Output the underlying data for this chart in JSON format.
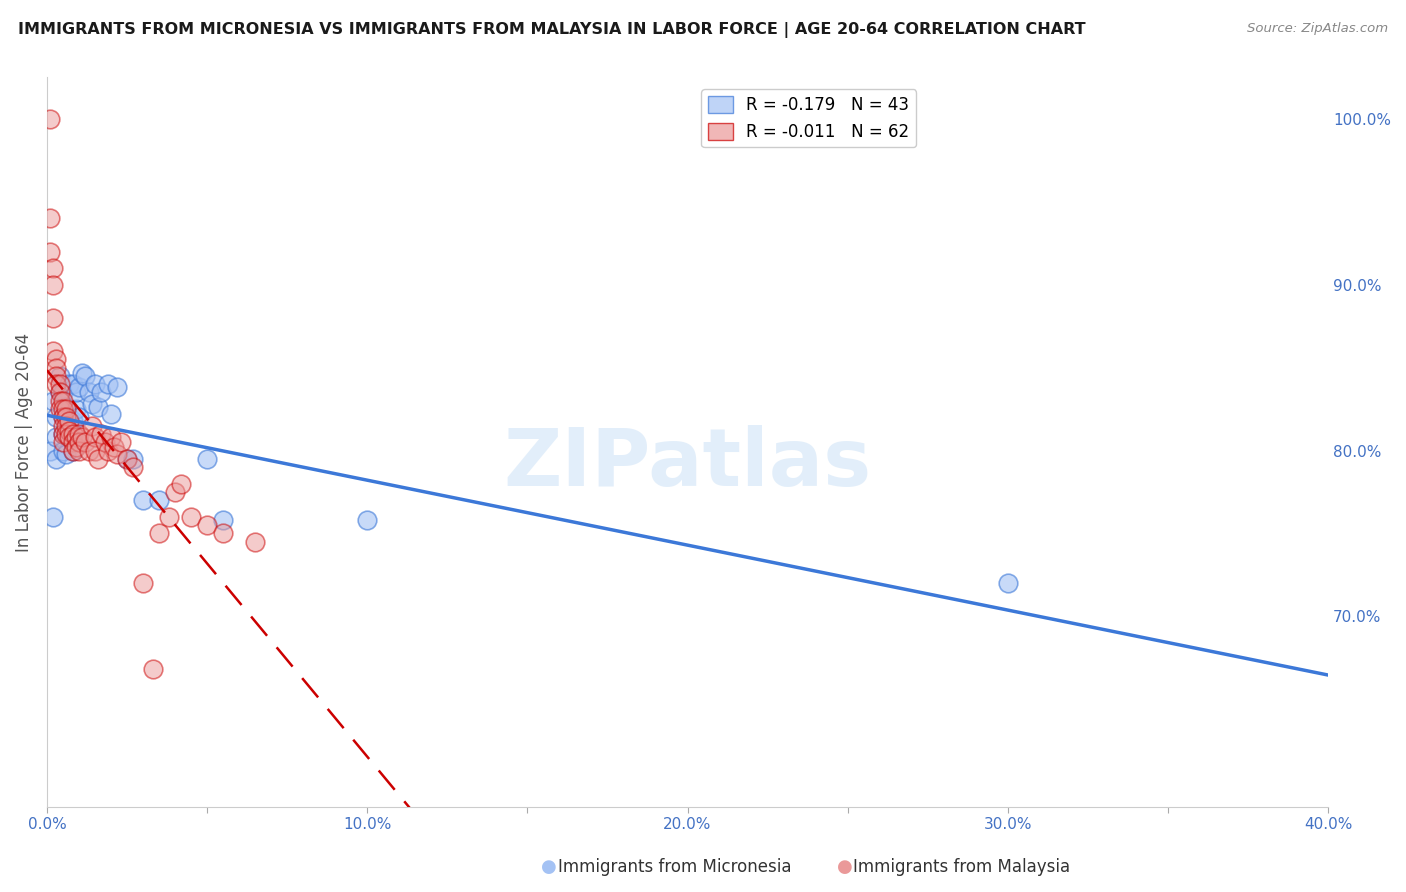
{
  "title": "IMMIGRANTS FROM MICRONESIA VS IMMIGRANTS FROM MALAYSIA IN LABOR FORCE | AGE 20-64 CORRELATION CHART",
  "source": "Source: ZipAtlas.com",
  "ylabel": "In Labor Force | Age 20-64",
  "xlim": [
    0.0,
    0.4
  ],
  "ylim": [
    0.585,
    1.025
  ],
  "right_yticks": [
    1.0,
    0.9,
    0.8,
    0.7
  ],
  "right_yticklabels": [
    "100.0%",
    "90.0%",
    "80.0%",
    "70.0%"
  ],
  "xticks": [
    0.0,
    0.05,
    0.1,
    0.15,
    0.2,
    0.25,
    0.3,
    0.35,
    0.4
  ],
  "xticklabels": [
    "0.0%",
    "",
    "10.0%",
    "",
    "20.0%",
    "",
    "30.0%",
    "",
    "40.0%"
  ],
  "micronesia_color": "#a4c2f4",
  "malaysia_color": "#ea9999",
  "micronesia_line_color": "#3c78d8",
  "malaysia_line_color": "#cc0000",
  "axis_color": "#4472c4",
  "grid_color": "#cccccc",
  "watermark": "ZIPatlas",
  "mic_R": -0.179,
  "mic_N": 43,
  "mal_R": -0.011,
  "mal_N": 62,
  "micronesia_x": [
    0.001,
    0.002,
    0.002,
    0.003,
    0.003,
    0.003,
    0.004,
    0.004,
    0.005,
    0.005,
    0.005,
    0.005,
    0.006,
    0.006,
    0.006,
    0.007,
    0.007,
    0.007,
    0.008,
    0.008,
    0.008,
    0.009,
    0.009,
    0.01,
    0.01,
    0.011,
    0.012,
    0.013,
    0.014,
    0.015,
    0.016,
    0.017,
    0.019,
    0.02,
    0.022,
    0.025,
    0.027,
    0.03,
    0.035,
    0.05,
    0.055,
    0.1,
    0.3
  ],
  "micronesia_y": [
    0.8,
    0.76,
    0.83,
    0.795,
    0.808,
    0.82,
    0.835,
    0.845,
    0.8,
    0.81,
    0.82,
    0.835,
    0.798,
    0.81,
    0.826,
    0.808,
    0.82,
    0.84,
    0.8,
    0.818,
    0.84,
    0.825,
    0.835,
    0.82,
    0.838,
    0.847,
    0.845,
    0.835,
    0.828,
    0.84,
    0.826,
    0.835,
    0.84,
    0.822,
    0.838,
    0.795,
    0.795,
    0.77,
    0.77,
    0.795,
    0.758,
    0.758,
    0.72
  ],
  "malaysia_x": [
    0.001,
    0.001,
    0.001,
    0.002,
    0.002,
    0.002,
    0.002,
    0.003,
    0.003,
    0.003,
    0.003,
    0.004,
    0.004,
    0.004,
    0.004,
    0.005,
    0.005,
    0.005,
    0.005,
    0.005,
    0.005,
    0.006,
    0.006,
    0.006,
    0.006,
    0.007,
    0.007,
    0.007,
    0.008,
    0.008,
    0.008,
    0.009,
    0.009,
    0.01,
    0.01,
    0.01,
    0.011,
    0.012,
    0.013,
    0.014,
    0.015,
    0.015,
    0.016,
    0.017,
    0.018,
    0.019,
    0.02,
    0.021,
    0.022,
    0.023,
    0.025,
    0.027,
    0.03,
    0.033,
    0.035,
    0.038,
    0.04,
    0.042,
    0.045,
    0.05,
    0.055,
    0.065
  ],
  "malaysia_y": [
    1.0,
    0.94,
    0.92,
    0.91,
    0.9,
    0.88,
    0.86,
    0.855,
    0.85,
    0.845,
    0.84,
    0.84,
    0.835,
    0.83,
    0.825,
    0.83,
    0.825,
    0.82,
    0.815,
    0.81,
    0.805,
    0.825,
    0.82,
    0.815,
    0.81,
    0.818,
    0.812,
    0.808,
    0.81,
    0.805,
    0.8,
    0.808,
    0.802,
    0.81,
    0.805,
    0.8,
    0.808,
    0.805,
    0.8,
    0.815,
    0.808,
    0.8,
    0.795,
    0.81,
    0.805,
    0.8,
    0.808,
    0.802,
    0.798,
    0.805,
    0.795,
    0.79,
    0.72,
    0.668,
    0.75,
    0.76,
    0.775,
    0.78,
    0.76,
    0.755,
    0.75,
    0.745
  ]
}
